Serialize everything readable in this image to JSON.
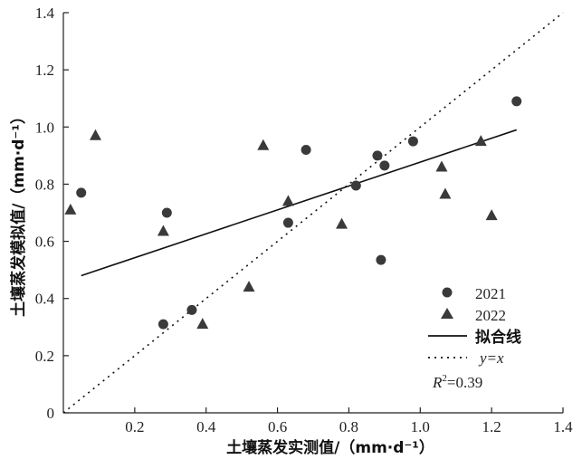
{
  "chart_data": {
    "type": "scatter",
    "title": "",
    "xlabel": "土壤蒸发实测值/（mm·d⁻¹）",
    "ylabel": "土壤蒸发模拟值/（mm·d⁻¹）",
    "xlim": [
      0,
      1.4
    ],
    "ylim": [
      0,
      1.4
    ],
    "xticks": [
      "0.2",
      "0.4",
      "0.6",
      "0.8",
      "1.0",
      "1.2",
      "1.4"
    ],
    "yticks": [
      "0",
      "0.2",
      "0.4",
      "0.6",
      "0.8",
      "1.0",
      "1.2",
      "1.4"
    ],
    "series": [
      {
        "name": "2021",
        "marker": "circle",
        "x": [
          0.05,
          0.29,
          0.28,
          0.36,
          0.63,
          0.68,
          0.82,
          0.88,
          0.9,
          0.89,
          0.98,
          1.27
        ],
        "y": [
          0.77,
          0.7,
          0.31,
          0.36,
          0.665,
          0.92,
          0.795,
          0.9,
          0.865,
          0.535,
          0.95,
          1.09
        ]
      },
      {
        "name": "2022",
        "marker": "triangle",
        "x": [
          0.02,
          0.09,
          0.28,
          0.39,
          0.52,
          0.56,
          0.63,
          0.78,
          1.06,
          1.07,
          1.17,
          1.2
        ],
        "y": [
          0.71,
          0.97,
          0.635,
          0.31,
          0.44,
          0.935,
          0.74,
          0.66,
          0.86,
          0.765,
          0.95,
          0.69
        ]
      }
    ],
    "fit_line": {
      "name": "拟合线",
      "x": [
        0.05,
        1.27
      ],
      "y": [
        0.48,
        0.99
      ]
    },
    "identity_line": {
      "name": "y=x",
      "x": [
        0,
        1.4
      ],
      "y": [
        0,
        1.4
      ]
    },
    "annotation": {
      "r2_label": "R",
      "r2_sup": "2",
      "r2_value": "=0.39"
    },
    "legend_position": "bottom-right",
    "grid": false
  }
}
